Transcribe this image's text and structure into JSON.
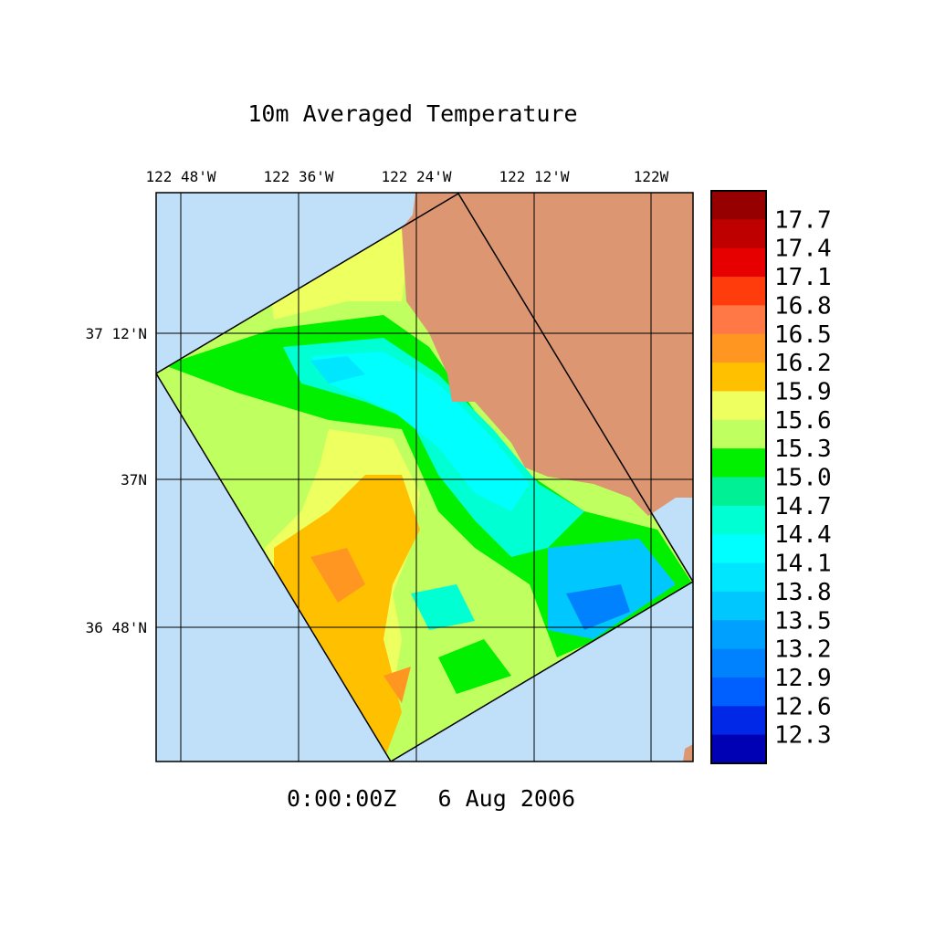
{
  "title": "10m Averaged Temperature",
  "time_label": "0:00:00Z   6 Aug 2006",
  "chart_data": {
    "type": "filled contour map",
    "title": "10m Averaged Temperature",
    "x_ticks": [
      "122 48'W",
      "122 36'W",
      "122 24'W",
      "122 12'W",
      "122W"
    ],
    "y_ticks": [
      "37 12'N",
      "37N",
      "36 48'N"
    ],
    "colorbar": {
      "labels": [
        "17.7",
        "17.4",
        "17.1",
        "16.8",
        "16.5",
        "16.2",
        "15.9",
        "15.6",
        "15.3",
        "15.0",
        "14.7",
        "14.4",
        "14.1",
        "13.8",
        "13.5",
        "13.2",
        "12.9",
        "12.6",
        "12.3"
      ],
      "colors": [
        "#960000",
        "#be0000",
        "#e60000",
        "#ff3c0c",
        "#ff7846",
        "#ff9622",
        "#ffc000",
        "#eeff60",
        "#c0ff60",
        "#00f000",
        "#00f096",
        "#00ffd2",
        "#00ffff",
        "#00e6ff",
        "#00c8ff",
        "#00a0ff",
        "#0082ff",
        "#0060ff",
        "#0028e6",
        "#0000b4"
      ]
    },
    "land_color": "#dc9672",
    "ocean_color": "#c0e0fa"
  }
}
